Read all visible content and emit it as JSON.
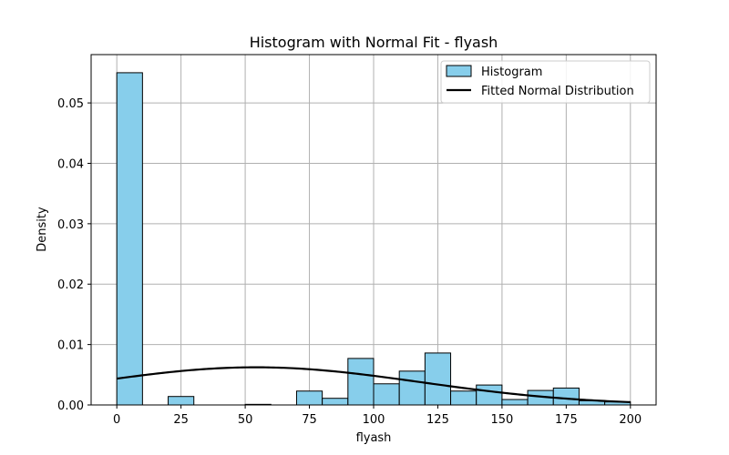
{
  "chart_data": {
    "type": "bar",
    "title": "Histogram with Normal Fit - flyash",
    "xlabel": "flyash",
    "ylabel": "Density",
    "xlim": [
      -10,
      210
    ],
    "ylim": [
      0,
      0.058
    ],
    "xticks": [
      0,
      25,
      50,
      75,
      100,
      125,
      150,
      175,
      200
    ],
    "yticks": [
      0.0,
      0.01,
      0.02,
      0.03,
      0.04,
      0.05
    ],
    "ytick_labels": [
      "0.00",
      "0.01",
      "0.02",
      "0.03",
      "0.04",
      "0.05"
    ],
    "grid": true,
    "legend_position": "top-right",
    "colors": {
      "bar_fill": "#87CEEB",
      "bar_edge": "#000000",
      "curve": "#000000",
      "grid": "#b0b0b0"
    },
    "histogram": {
      "name": "Histogram",
      "bin_edges": [
        0,
        10,
        20,
        30,
        40,
        50,
        60,
        70,
        80,
        90,
        100,
        110,
        120,
        130,
        140,
        150,
        160,
        170,
        180,
        190,
        200
      ],
      "values": [
        0.055,
        0.0,
        0.0014,
        0.0,
        0.0,
        0.0001,
        0.0,
        0.0023,
        0.0011,
        0.0077,
        0.0035,
        0.0056,
        0.0086,
        0.0023,
        0.0033,
        0.0009,
        0.0024,
        0.0028,
        0.0007,
        0.0005
      ]
    },
    "normal_fit": {
      "name": "Fitted Normal Distribution",
      "mean": 54.2,
      "std": 64.0,
      "x_range": [
        0,
        200
      ]
    }
  }
}
